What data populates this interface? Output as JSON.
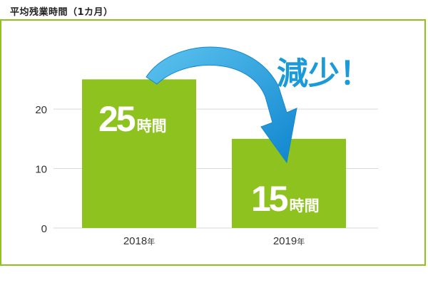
{
  "chart_data": {
    "type": "bar",
    "title": "平均残業時間（1カ月）",
    "categories": [
      "2018年",
      "2019年"
    ],
    "category_parts": [
      {
        "num": "2018",
        "unit": "年"
      },
      {
        "num": "2019",
        "unit": "年"
      }
    ],
    "values": [
      25,
      15
    ],
    "data_labels": [
      {
        "num": "25",
        "unit": "時間"
      },
      {
        "num": "15",
        "unit": "時間"
      }
    ],
    "yticks": [
      0,
      10,
      20
    ],
    "ylim": [
      0,
      29
    ],
    "grid": true,
    "annotation": "減少！",
    "bar_color": "#8dc21f",
    "arrow_color": "#1a9ad9"
  }
}
